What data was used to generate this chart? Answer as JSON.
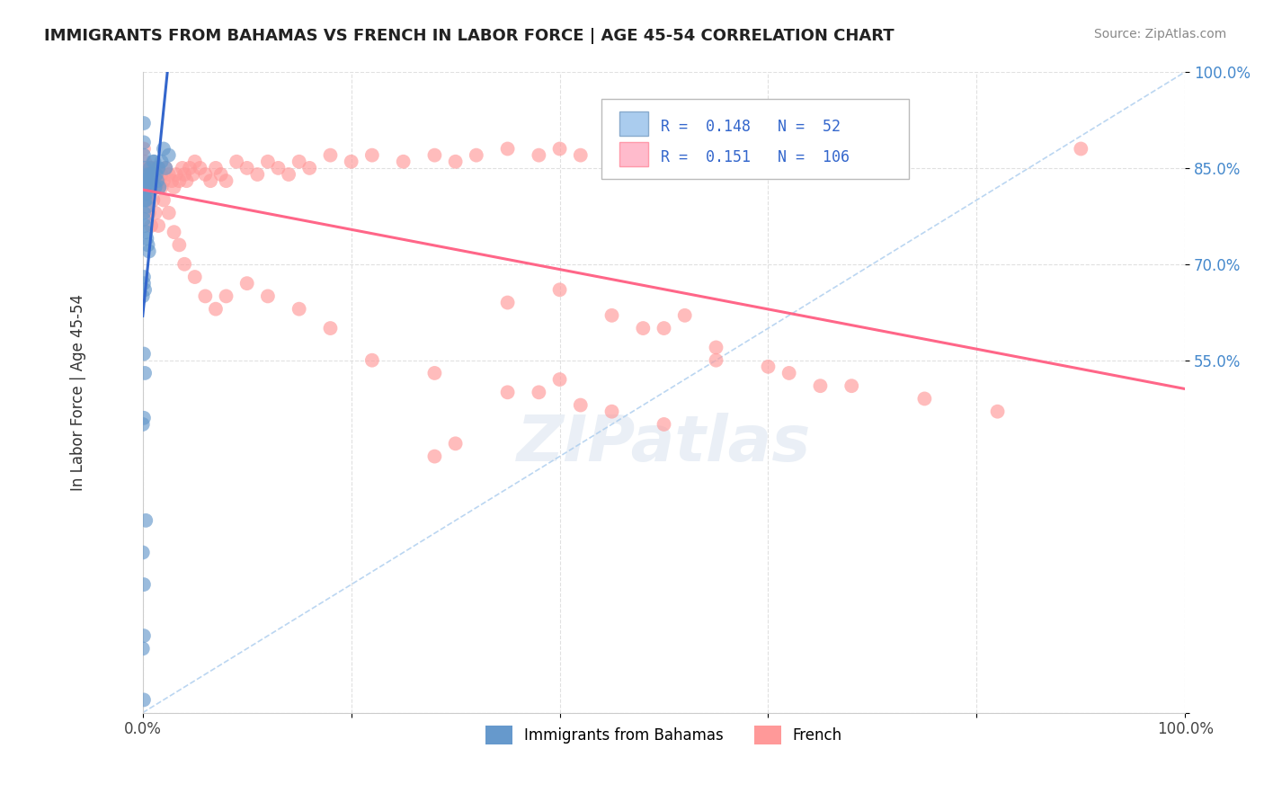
{
  "title": "IMMIGRANTS FROM BAHAMAS VS FRENCH IN LABOR FORCE | AGE 45-54 CORRELATION CHART",
  "source": "Source: ZipAtlas.com",
  "ylabel": "In Labor Force | Age 45-54",
  "x_tick_positions": [
    0.0,
    0.2,
    0.4,
    0.6,
    0.8,
    1.0
  ],
  "x_tick_labels": [
    "0.0%",
    "",
    "",
    "",
    "",
    "100.0%"
  ],
  "y_tick_positions": [
    0.0,
    0.55,
    0.7,
    0.85,
    1.0
  ],
  "y_tick_labels": [
    "",
    "55.0%",
    "70.0%",
    "85.0%",
    "100.0%"
  ],
  "legend_bottom": [
    "Immigrants from Bahamas",
    "French"
  ],
  "R_bahamas": 0.148,
  "N_bahamas": 52,
  "R_french": 0.151,
  "N_french": 106,
  "bahamas_color": "#6699cc",
  "french_color": "#ff9999",
  "bahamas_trend_color": "#3366cc",
  "french_trend_color": "#ff6688",
  "background_color": "#ffffff",
  "grid_color": "#dddddd",
  "bahamas_x": [
    0.001,
    0.001,
    0.001,
    0.002,
    0.002,
    0.002,
    0.003,
    0.003,
    0.004,
    0.004,
    0.004,
    0.005,
    0.005,
    0.006,
    0.006,
    0.007,
    0.007,
    0.008,
    0.009,
    0.01,
    0.011,
    0.012,
    0.013,
    0.014,
    0.015,
    0.016,
    0.018,
    0.02,
    0.022,
    0.025,
    0.001,
    0.001,
    0.002,
    0.002,
    0.003,
    0.004,
    0.005,
    0.006,
    0.001,
    0.001,
    0.001,
    0.001,
    0.002,
    0.003,
    0.001,
    0.002,
    0.001,
    0.001,
    0.0,
    0.0,
    0.0,
    0.0
  ],
  "bahamas_y": [
    0.92,
    0.89,
    0.87,
    0.85,
    0.83,
    0.82,
    0.81,
    0.8,
    0.82,
    0.81,
    0.79,
    0.84,
    0.83,
    0.83,
    0.82,
    0.85,
    0.84,
    0.83,
    0.84,
    0.86,
    0.86,
    0.82,
    0.84,
    0.83,
    0.85,
    0.82,
    0.86,
    0.88,
    0.85,
    0.87,
    0.78,
    0.77,
    0.8,
    0.76,
    0.75,
    0.74,
    0.73,
    0.72,
    0.68,
    0.67,
    0.56,
    0.46,
    0.66,
    0.3,
    0.2,
    0.53,
    0.12,
    0.02,
    0.45,
    0.65,
    0.25,
    0.1
  ],
  "french_x": [
    0.001,
    0.002,
    0.003,
    0.004,
    0.005,
    0.005,
    0.006,
    0.007,
    0.008,
    0.009,
    0.01,
    0.011,
    0.012,
    0.013,
    0.015,
    0.016,
    0.018,
    0.02,
    0.022,
    0.025,
    0.028,
    0.03,
    0.032,
    0.035,
    0.038,
    0.04,
    0.042,
    0.045,
    0.048,
    0.05,
    0.055,
    0.06,
    0.065,
    0.07,
    0.075,
    0.08,
    0.09,
    0.1,
    0.11,
    0.12,
    0.13,
    0.14,
    0.15,
    0.16,
    0.18,
    0.2,
    0.22,
    0.25,
    0.28,
    0.3,
    0.32,
    0.35,
    0.38,
    0.4,
    0.42,
    0.45,
    0.48,
    0.5,
    0.55,
    0.6,
    0.003,
    0.004,
    0.006,
    0.008,
    0.01,
    0.012,
    0.015,
    0.018,
    0.02,
    0.025,
    0.03,
    0.035,
    0.04,
    0.05,
    0.06,
    0.07,
    0.08,
    0.1,
    0.12,
    0.15,
    0.18,
    0.22,
    0.28,
    0.35,
    0.4,
    0.45,
    0.5,
    0.55,
    0.6,
    0.65,
    0.35,
    0.4,
    0.45,
    0.5,
    0.48,
    0.52,
    0.38,
    0.42,
    0.3,
    0.28,
    0.55,
    0.62,
    0.68,
    0.75,
    0.82,
    0.9
  ],
  "french_y": [
    0.88,
    0.86,
    0.84,
    0.85,
    0.83,
    0.81,
    0.84,
    0.85,
    0.83,
    0.84,
    0.85,
    0.82,
    0.84,
    0.85,
    0.83,
    0.82,
    0.84,
    0.83,
    0.85,
    0.84,
    0.83,
    0.82,
    0.84,
    0.83,
    0.85,
    0.84,
    0.83,
    0.85,
    0.84,
    0.86,
    0.85,
    0.84,
    0.83,
    0.85,
    0.84,
    0.83,
    0.86,
    0.85,
    0.84,
    0.86,
    0.85,
    0.84,
    0.86,
    0.85,
    0.87,
    0.86,
    0.87,
    0.86,
    0.87,
    0.86,
    0.87,
    0.88,
    0.87,
    0.88,
    0.87,
    0.88,
    0.89,
    0.88,
    0.89,
    0.9,
    0.82,
    0.8,
    0.78,
    0.76,
    0.8,
    0.78,
    0.76,
    0.82,
    0.8,
    0.78,
    0.75,
    0.73,
    0.7,
    0.68,
    0.65,
    0.63,
    0.65,
    0.67,
    0.65,
    0.63,
    0.6,
    0.55,
    0.53,
    0.64,
    0.66,
    0.62,
    0.6,
    0.57,
    0.54,
    0.51,
    0.5,
    0.52,
    0.47,
    0.45,
    0.6,
    0.62,
    0.5,
    0.48,
    0.42,
    0.4,
    0.55,
    0.53,
    0.51,
    0.49,
    0.47,
    0.88
  ]
}
